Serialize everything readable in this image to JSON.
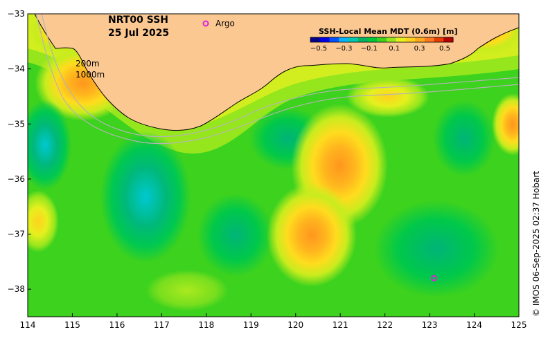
{
  "map": {
    "title_line1": "NRT00 SSH",
    "title_line2": "25 Jul 2025",
    "legend_argo_label": "Argo",
    "argo_color": "#e020e0",
    "isobath_labels": [
      "200m",
      "1000m"
    ],
    "credit": "© IMOS 06-Sep-2025 02:37 Hobart",
    "land_color": "#fcc891",
    "colorbar": {
      "title": "SSH-Local Mean MDT (0.6m) [m]",
      "ticks": [
        "−0.5",
        "−0.3",
        "−0.1",
        "0.1",
        "0.3",
        "0.5"
      ],
      "colors": [
        "#00008c",
        "#0000e6",
        "#0050ff",
        "#00b4ff",
        "#00c8b0",
        "#00b464",
        "#00c83c",
        "#3cd21e",
        "#96e61e",
        "#e6f01e",
        "#ffd21e",
        "#ffaa1e",
        "#ff781e",
        "#e63c00",
        "#b40000"
      ]
    },
    "x_ticks": [
      "114",
      "115",
      "116",
      "117",
      "118",
      "119",
      "120",
      "121",
      "122",
      "123",
      "124",
      "125"
    ],
    "y_ticks": [
      "−33",
      "−34",
      "−35",
      "−36",
      "−37",
      "−38"
    ],
    "lon_range": [
      114,
      125
    ],
    "lat_range": [
      -38.5,
      -33
    ],
    "argo_float": {
      "lon": 123.1,
      "lat": -37.8
    }
  }
}
